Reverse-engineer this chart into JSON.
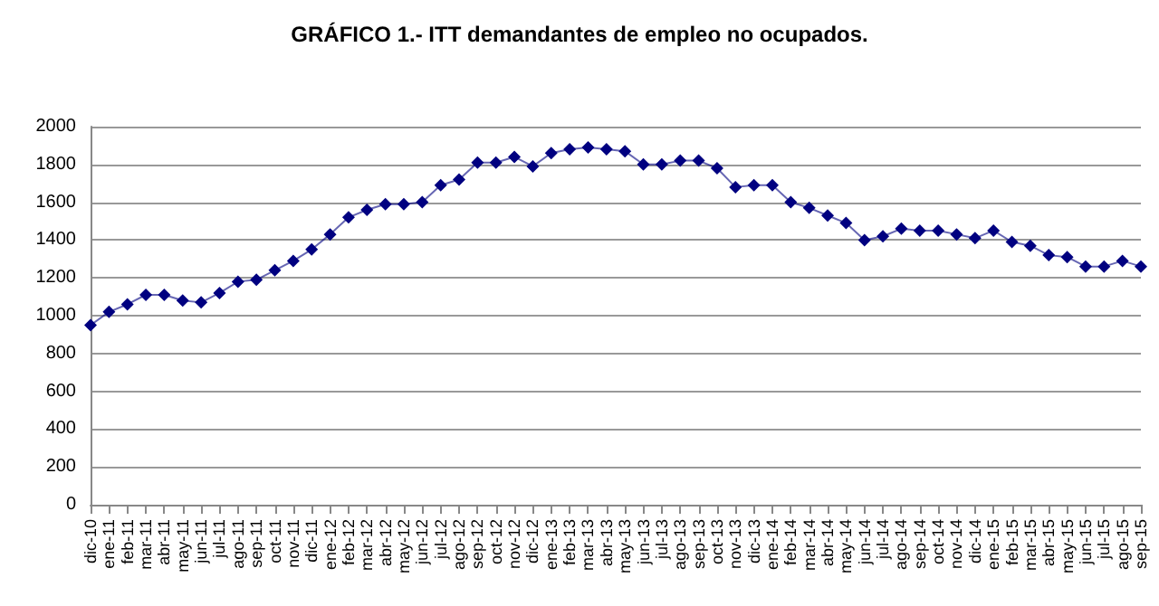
{
  "chart_data": {
    "type": "line",
    "title": "GRÁFICO 1.- ITT demandantes de empleo no ocupados.",
    "categories": [
      "dic-10",
      "ene-11",
      "feb-11",
      "mar-11",
      "abr-11",
      "may-11",
      "jun-11",
      "jul-11",
      "ago-11",
      "sep-11",
      "oct-11",
      "nov-11",
      "dic-11",
      "ene-12",
      "feb-12",
      "mar-12",
      "abr-12",
      "may-12",
      "jun-12",
      "jul-12",
      "ago-12",
      "sep-12",
      "oct-12",
      "nov-12",
      "dic-12",
      "ene-13",
      "feb-13",
      "mar-13",
      "abr-13",
      "may-13",
      "jun-13",
      "jul-13",
      "ago-13",
      "sep-13",
      "oct-13",
      "nov-13",
      "dic-13",
      "ene-14",
      "feb-14",
      "mar-14",
      "abr-14",
      "may-14",
      "jun-14",
      "jul-14",
      "ago-14",
      "sep-14",
      "oct-14",
      "nov-14",
      "dic-14",
      "ene-15",
      "feb-15",
      "mar-15",
      "abr-15",
      "may-15",
      "jun-15",
      "jul-15",
      "ago-15",
      "sep-15"
    ],
    "series": [
      {
        "color": "#000080",
        "values": [
          950,
          1020,
          1060,
          1110,
          1110,
          1080,
          1070,
          1120,
          1180,
          1190,
          1240,
          1290,
          1350,
          1430,
          1520,
          1560,
          1590,
          1590,
          1600,
          1690,
          1720,
          1810,
          1810,
          1840,
          1790,
          1860,
          1880,
          1890,
          1880,
          1870,
          1800,
          1800,
          1820,
          1820,
          1780,
          1680,
          1690,
          1690,
          1600,
          1570,
          1530,
          1490,
          1400,
          1420,
          1460,
          1450,
          1450,
          1430,
          1410,
          1450,
          1390,
          1370,
          1320,
          1310,
          1260,
          1260,
          1290,
          1260
        ]
      }
    ],
    "ylim": [
      0,
      2000
    ],
    "yticks": [
      0,
      200,
      400,
      600,
      800,
      1000,
      1200,
      1400,
      1600,
      1800,
      2000
    ],
    "grid": "y",
    "marker": "diamond",
    "line_style": "solid"
  }
}
